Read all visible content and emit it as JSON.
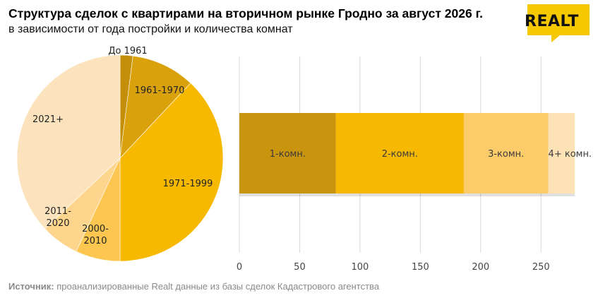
{
  "header": {
    "title": "Структура сделок с квартирами на вторичном рынке Гродно за август 2026 г.",
    "subtitle": "в зависимости от года постройки и количества комнат"
  },
  "logo": {
    "text": "REALT",
    "brand_color": "#F5C800"
  },
  "source": {
    "label": "Источник:",
    "text": " проанализированные Realt данные из базы сделок Кадастрового агентства"
  },
  "chart_data": [
    {
      "type": "pie",
      "categories": [
        "До 1961",
        "1961-1970",
        "1971-1999",
        "2000-2010",
        "2011-2020",
        "2021+"
      ],
      "values": [
        2,
        10,
        38,
        7,
        6,
        37
      ],
      "unit": "%",
      "colors": [
        "#C4900A",
        "#D9A20D",
        "#F7B900",
        "#FCC650",
        "#FDD58C",
        "#FCE3BE"
      ],
      "label_colors": [
        "#222222",
        "#222222",
        "#222222",
        "#222222",
        "#222222",
        "#222222"
      ]
    },
    {
      "type": "bar",
      "orientation": "horizontal",
      "stacked": true,
      "series": [
        {
          "name": "1-комн.",
          "values": [
            80
          ],
          "color": "#C9950F"
        },
        {
          "name": "2-комн.",
          "values": [
            106
          ],
          "color": "#F6B800"
        },
        {
          "name": "3-комн.",
          "values": [
            70
          ],
          "color": "#FCCC6A"
        },
        {
          "name": "4+ комн.",
          "values": [
            22
          ],
          "color": "#FDE2B6"
        }
      ],
      "xlim": [
        0,
        275
      ],
      "xticks": [
        "0",
        "50",
        "100",
        "150",
        "200",
        "250"
      ],
      "grid": true
    }
  ]
}
